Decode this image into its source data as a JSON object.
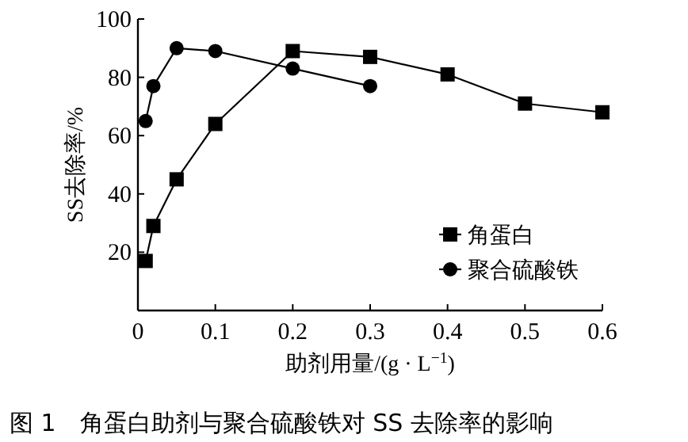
{
  "chart_data": {
    "type": "line",
    "xlabel": "助剂用量/(g · L$^{−1}$)",
    "ylabel": "SS去除率/%",
    "xlim": [
      0,
      0.6
    ],
    "xticks": [
      0,
      0.1,
      0.2,
      0.3,
      0.4,
      0.5,
      0.6
    ],
    "ylim": [
      0,
      100
    ],
    "yticks": [
      20,
      40,
      60,
      80,
      100
    ],
    "grid": false,
    "legend": "bottom right",
    "annotations": [
      "图 1　角蛋白助剂与聚合硫酸铁对 SS 去除率的影响"
    ],
    "series": [
      {
        "name": "角蛋白",
        "color": "#000000",
        "marker": "square",
        "x": [
          0.01,
          0.02,
          0.05,
          0.1,
          0.2,
          0.3,
          0.4,
          0.5,
          0.6
        ],
        "values": [
          17,
          29,
          45,
          64,
          89,
          87,
          81,
          71,
          68
        ]
      },
      {
        "name": "聚合硫酸铁",
        "color": "#000000",
        "marker": "circle",
        "x": [
          0.01,
          0.02,
          0.05,
          0.1,
          0.2,
          0.3
        ],
        "values": [
          65,
          77,
          90,
          89,
          83,
          77
        ]
      }
    ]
  }
}
